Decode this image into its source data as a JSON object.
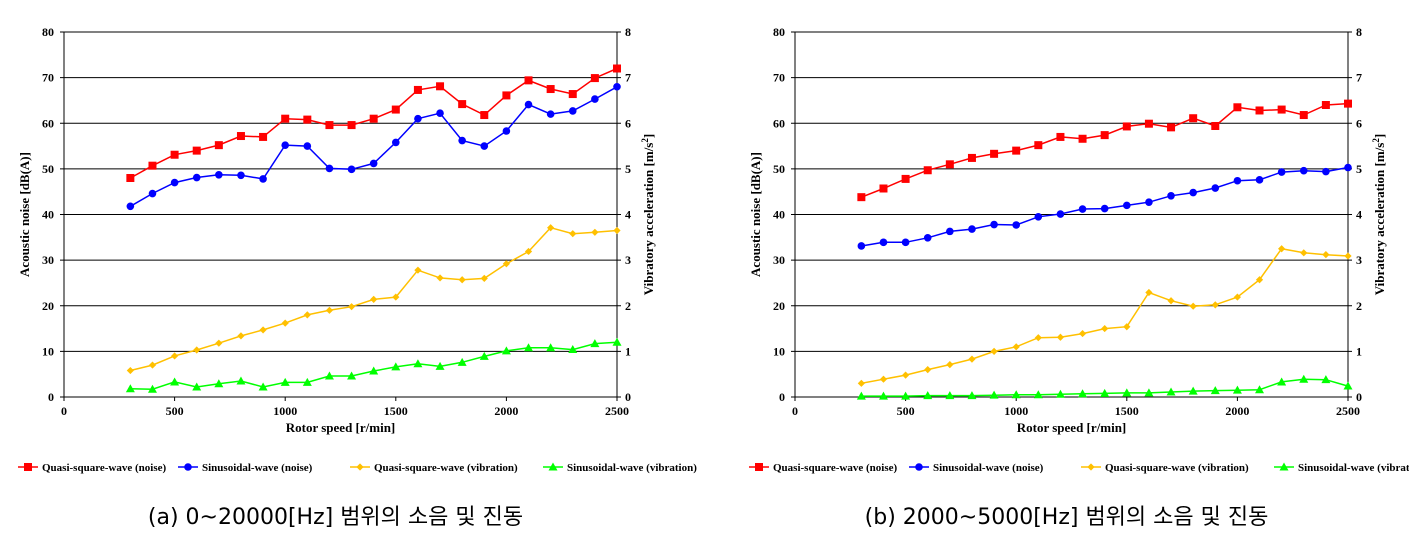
{
  "colors": {
    "quasi_noise": "#ff0000",
    "sine_noise": "#0000ff",
    "quasi_vibration": "#ffc000",
    "sine_vibration": "#00ff00"
  },
  "markers": {
    "quasi_noise": "square",
    "sine_noise": "circle",
    "quasi_vibration": "diamond",
    "sine_vibration": "triangle"
  },
  "chart_data": [
    {
      "type": "line",
      "caption": "(a) 0~20000[Hz] 범위의 소음 및 진동",
      "xlabel": "Rotor speed [r/min]",
      "ylabel_left": "Acoustic noise [dB(A)]",
      "ylabel_right_main": "Vibratory acceleration [m/s",
      "ylabel_right_sup": "2",
      "ylabel_right_end": "]",
      "xlim": [
        0,
        2500
      ],
      "xticks": [
        "0",
        "500",
        "1000",
        "1500",
        "2000",
        "2500"
      ],
      "ylim_left": [
        0,
        80
      ],
      "yticks_left": [
        "0",
        "10",
        "20",
        "30",
        "40",
        "50",
        "60",
        "70",
        "80"
      ],
      "ylim_right": [
        0,
        8
      ],
      "yticks_right": [
        "0",
        "1",
        "2",
        "3",
        "4",
        "5",
        "6",
        "7",
        "8"
      ],
      "grid": "horizontal",
      "legend": "bottom",
      "x": [
        300,
        400,
        500,
        600,
        700,
        800,
        900,
        1000,
        1100,
        1200,
        1300,
        1400,
        1500,
        1600,
        1700,
        1800,
        1900,
        2000,
        2100,
        2200,
        2300,
        2400,
        2500
      ],
      "series": [
        {
          "key": "quasi_noise",
          "name": "Quasi-square-wave (noise)",
          "axis": "left",
          "values": [
            48.0,
            50.7,
            53.1,
            54.0,
            55.2,
            57.2,
            57.0,
            61.0,
            60.8,
            59.6,
            59.6,
            61.0,
            63.0,
            67.3,
            68.1,
            64.2,
            61.8,
            66.1,
            69.4,
            67.5,
            66.4,
            69.9,
            72.0
          ]
        },
        {
          "key": "sine_noise",
          "name": "Sinusoidal-wave (noise)",
          "axis": "left",
          "values": [
            41.8,
            44.6,
            47.0,
            48.1,
            48.7,
            48.6,
            47.8,
            55.2,
            55.0,
            50.1,
            49.9,
            51.2,
            55.8,
            61.0,
            62.2,
            56.2,
            55.0,
            58.3,
            64.1,
            62.0,
            62.7,
            65.3,
            68.0
          ]
        },
        {
          "key": "quasi_vibration",
          "name": "Quasi-square-wave (vibration)",
          "axis": "right",
          "values": [
            0.58,
            0.7,
            0.9,
            1.03,
            1.18,
            1.34,
            1.47,
            1.62,
            1.8,
            1.9,
            1.98,
            2.14,
            2.19,
            2.78,
            2.61,
            2.57,
            2.6,
            2.92,
            3.19,
            3.71,
            3.58,
            3.61,
            3.65
          ]
        },
        {
          "key": "sine_vibration",
          "name": "Sinusoidal-wave (vibration)",
          "axis": "right",
          "values": [
            0.18,
            0.17,
            0.33,
            0.22,
            0.29,
            0.35,
            0.22,
            0.32,
            0.32,
            0.46,
            0.46,
            0.57,
            0.66,
            0.73,
            0.67,
            0.76,
            0.89,
            1.01,
            1.08,
            1.08,
            1.04,
            1.17,
            1.2
          ]
        }
      ]
    },
    {
      "type": "line",
      "caption": "(b) 2000~5000[Hz] 범위의 소음 및 진동",
      "xlabel": "Rotor speed [r/min]",
      "ylabel_left": "Acoustic noise [dB(A)]",
      "ylabel_right_main": "Vibratory acceleration [m/s",
      "ylabel_right_sup": "2",
      "ylabel_right_end": "]",
      "xlim": [
        0,
        2500
      ],
      "xticks": [
        "0",
        "500",
        "1000",
        "1500",
        "2000",
        "2500"
      ],
      "ylim_left": [
        0,
        80
      ],
      "yticks_left": [
        "0",
        "10",
        "20",
        "30",
        "40",
        "50",
        "60",
        "70",
        "80"
      ],
      "ylim_right": [
        0,
        8
      ],
      "yticks_right": [
        "0",
        "1",
        "2",
        "3",
        "4",
        "5",
        "6",
        "7",
        "8"
      ],
      "grid": "horizontal",
      "legend": "bottom",
      "x": [
        300,
        400,
        500,
        600,
        700,
        800,
        900,
        1000,
        1100,
        1200,
        1300,
        1400,
        1500,
        1600,
        1700,
        1800,
        1900,
        2000,
        2100,
        2200,
        2300,
        2400,
        2500
      ],
      "series": [
        {
          "key": "quasi_noise",
          "name": "Quasi-square-wave (noise)",
          "axis": "left",
          "values": [
            43.8,
            45.7,
            47.8,
            49.7,
            51.0,
            52.4,
            53.3,
            54.0,
            55.2,
            57.0,
            56.6,
            57.4,
            59.3,
            59.9,
            59.1,
            61.1,
            59.4,
            63.5,
            62.8,
            63.0,
            61.8,
            64.0,
            64.3
          ]
        },
        {
          "key": "sine_noise",
          "name": "Sinusoidal-wave (noise)",
          "axis": "left",
          "values": [
            33.1,
            33.9,
            33.9,
            34.9,
            36.3,
            36.8,
            37.8,
            37.7,
            39.5,
            40.1,
            41.2,
            41.3,
            42.0,
            42.7,
            44.1,
            44.8,
            45.8,
            47.4,
            47.6,
            49.3,
            49.6,
            49.4,
            50.3
          ]
        },
        {
          "key": "quasi_vibration",
          "name": "Quasi-square-wave (vibration)",
          "axis": "right",
          "values": [
            0.3,
            0.39,
            0.48,
            0.6,
            0.71,
            0.83,
            1.0,
            1.1,
            1.3,
            1.31,
            1.39,
            1.5,
            1.54,
            2.29,
            2.11,
            1.99,
            2.02,
            2.19,
            2.57,
            3.25,
            3.16,
            3.12,
            3.09
          ]
        },
        {
          "key": "sine_vibration",
          "name": "Sinusoidal-wave (vibration)",
          "axis": "right",
          "values": [
            0.02,
            0.02,
            0.02,
            0.03,
            0.03,
            0.03,
            0.04,
            0.05,
            0.05,
            0.06,
            0.07,
            0.08,
            0.09,
            0.09,
            0.11,
            0.13,
            0.14,
            0.15,
            0.16,
            0.33,
            0.39,
            0.38,
            0.24
          ]
        }
      ]
    }
  ]
}
